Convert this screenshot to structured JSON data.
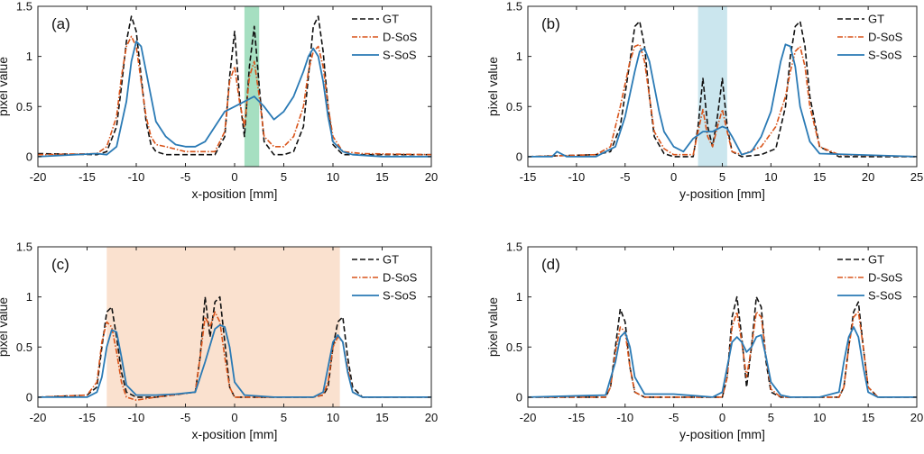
{
  "figure": {
    "legend_labels": [
      "GT",
      "D-SoS",
      "S-SoS"
    ],
    "colors": {
      "GT": "#111111",
      "D-SoS": "#d9541a",
      "S-SoS": "#2a7ab5"
    }
  },
  "chart_data": [
    {
      "type": "line",
      "panel_label": "(a)",
      "xlabel": "x-position [mm]",
      "ylabel": "pixel value",
      "xlim": [
        -20,
        20
      ],
      "ylim": [
        -0.1,
        1.5
      ],
      "xticks": [
        -20,
        -15,
        -10,
        -5,
        0,
        5,
        10,
        15,
        20
      ],
      "yticks": [
        0,
        0.5,
        1,
        1.5
      ],
      "legend": "top-right",
      "highlight": {
        "x": [
          1.0,
          2.5
        ],
        "color": "#5cc48e",
        "opacity": 0.55
      },
      "series": [
        {
          "name": "GT",
          "style": "dashed",
          "x": [
            -20,
            -14,
            -13,
            -12,
            -11.5,
            -11,
            -10.5,
            -10,
            -9.5,
            -9,
            -8.5,
            -8,
            -7,
            -5,
            -2,
            -1,
            -0.5,
            0,
            0.5,
            1,
            1.5,
            2,
            2.5,
            3,
            4,
            5,
            6,
            7,
            7.5,
            8,
            8.5,
            9,
            9.5,
            10,
            11,
            13,
            20
          ],
          "y": [
            0.03,
            0.02,
            0.05,
            0.3,
            0.7,
            1.15,
            1.4,
            1.25,
            0.8,
            0.35,
            0.12,
            0.05,
            0.02,
            0.02,
            0.02,
            0.2,
            0.8,
            1.25,
            0.6,
            0.2,
            0.9,
            1.3,
            0.7,
            0.15,
            0.02,
            0.02,
            0.05,
            0.3,
            0.8,
            1.3,
            1.4,
            1.05,
            0.5,
            0.12,
            0.02,
            0.02,
            0.02
          ]
        },
        {
          "name": "D-SoS",
          "style": "dashdot",
          "x": [
            -20,
            -14,
            -13,
            -12,
            -11.5,
            -11,
            -10.5,
            -10,
            -9.5,
            -9,
            -8.5,
            -8,
            -7,
            -5,
            -2,
            -1,
            -0.5,
            0,
            0.5,
            1,
            1.5,
            2,
            2.5,
            3,
            4,
            5,
            6,
            7,
            7.5,
            8,
            8.5,
            9,
            9.5,
            10,
            11,
            13,
            20
          ],
          "y": [
            0.02,
            0.03,
            0.1,
            0.4,
            0.8,
            1.1,
            1.2,
            1.1,
            0.75,
            0.4,
            0.2,
            0.12,
            0.1,
            0.05,
            0.05,
            0.25,
            0.75,
            0.9,
            0.55,
            0.3,
            0.8,
            0.95,
            0.6,
            0.2,
            0.1,
            0.1,
            0.2,
            0.5,
            0.85,
            1.05,
            1.1,
            0.9,
            0.5,
            0.2,
            0.05,
            0.03,
            0.02
          ]
        },
        {
          "name": "S-SoS",
          "style": "solid",
          "x": [
            -20,
            -14,
            -13,
            -12,
            -11,
            -10.5,
            -10,
            -9.5,
            -9,
            -8,
            -7,
            -6,
            -5,
            -4,
            -3,
            -2,
            -1,
            0,
            1,
            2,
            3,
            4,
            5,
            6,
            7,
            7.5,
            8,
            8.5,
            9,
            9.5,
            10,
            11,
            12,
            15,
            20
          ],
          "y": [
            0.0,
            0.03,
            0.02,
            0.1,
            0.55,
            0.95,
            1.15,
            1.1,
            0.85,
            0.35,
            0.2,
            0.12,
            0.1,
            0.1,
            0.15,
            0.3,
            0.45,
            0.5,
            0.55,
            0.6,
            0.5,
            0.37,
            0.45,
            0.6,
            0.85,
            1.0,
            1.08,
            1.0,
            0.75,
            0.4,
            0.15,
            0.05,
            0.02,
            0.0,
            0.0
          ]
        }
      ]
    },
    {
      "type": "line",
      "panel_label": "(b)",
      "xlabel": "y-position [mm]",
      "ylabel": "pixel value",
      "xlim": [
        -15,
        25
      ],
      "ylim": [
        -0.1,
        1.5
      ],
      "xticks": [
        -15,
        -10,
        -5,
        0,
        5,
        10,
        15,
        20,
        25
      ],
      "yticks": [
        0,
        0.5,
        1,
        1.5
      ],
      "legend": "top-right",
      "highlight": {
        "x": [
          2.5,
          5.5
        ],
        "color": "#a9d6e2",
        "opacity": 0.6
      },
      "series": [
        {
          "name": "GT",
          "style": "dashed",
          "x": [
            -15,
            -8,
            -6.5,
            -5.5,
            -4.5,
            -4,
            -3.5,
            -3,
            -2.5,
            -2,
            -1,
            0,
            2,
            2.5,
            3,
            3.5,
            4,
            4.5,
            5,
            5.5,
            6,
            7,
            9,
            10.5,
            11.5,
            12,
            12.5,
            13,
            13.5,
            14,
            15,
            17,
            25
          ],
          "y": [
            0.0,
            0.02,
            0.05,
            0.3,
            0.95,
            1.3,
            1.35,
            1.1,
            0.6,
            0.2,
            0.03,
            0.0,
            0.0,
            0.3,
            0.78,
            0.3,
            0.1,
            0.4,
            0.78,
            0.3,
            0.05,
            0.0,
            0.02,
            0.08,
            0.5,
            1.0,
            1.3,
            1.35,
            1.1,
            0.6,
            0.1,
            0.0,
            0.0
          ]
        },
        {
          "name": "D-SoS",
          "style": "dashdot",
          "x": [
            -15,
            -8,
            -6.5,
            -5.5,
            -4.5,
            -4,
            -3.5,
            -3,
            -2.5,
            -2,
            -1,
            0,
            2,
            2.5,
            3,
            3.5,
            4,
            4.5,
            5,
            5.5,
            6,
            7,
            9,
            10.5,
            11.5,
            12,
            12.5,
            13,
            13.5,
            14,
            15,
            17,
            25
          ],
          "y": [
            0.0,
            0.02,
            0.1,
            0.5,
            0.95,
            1.1,
            1.12,
            0.95,
            0.6,
            0.25,
            0.08,
            0.02,
            0.02,
            0.25,
            0.47,
            0.2,
            0.1,
            0.3,
            0.47,
            0.25,
            0.05,
            0.02,
            0.1,
            0.3,
            0.6,
            0.85,
            1.05,
            1.1,
            0.9,
            0.5,
            0.1,
            0.02,
            0.0
          ]
        },
        {
          "name": "S-SoS",
          "style": "solid",
          "x": [
            -15,
            -12.5,
            -12,
            -11,
            -8,
            -6,
            -5,
            -4,
            -3.5,
            -3,
            -2.5,
            -2,
            -1.5,
            -1,
            0,
            1,
            2,
            3,
            4,
            5,
            5.5,
            6,
            7,
            8,
            9,
            10,
            11,
            11.5,
            12,
            12.5,
            13,
            14,
            15,
            25
          ],
          "y": [
            0.0,
            0.0,
            0.05,
            0.0,
            0.0,
            0.1,
            0.4,
            0.85,
            1.05,
            1.08,
            0.95,
            0.7,
            0.45,
            0.25,
            0.1,
            0.05,
            0.18,
            0.25,
            0.25,
            0.3,
            0.28,
            0.2,
            0.02,
            0.05,
            0.2,
            0.45,
            0.95,
            1.12,
            1.1,
            0.9,
            0.5,
            0.15,
            0.03,
            0.0
          ]
        }
      ]
    },
    {
      "type": "line",
      "panel_label": "(c)",
      "xlabel": "x-position [mm]",
      "ylabel": "pixel value",
      "xlim": [
        -20,
        20
      ],
      "ylim": [
        -0.1,
        1.5
      ],
      "xticks": [
        -20,
        -15,
        -10,
        -5,
        0,
        5,
        10,
        15,
        20
      ],
      "yticks": [
        0,
        0.5,
        1,
        1.5
      ],
      "legend": "top-right",
      "highlight": {
        "x": [
          -13.0,
          10.7
        ],
        "color": "#f5c9a8",
        "opacity": 0.55
      },
      "series": [
        {
          "name": "GT",
          "style": "dashed",
          "x": [
            -20,
            -15,
            -14,
            -13.5,
            -13,
            -12.5,
            -12,
            -11.5,
            -11,
            -10,
            -8,
            -4,
            -3.5,
            -3,
            -2.5,
            -2,
            -1.5,
            -1,
            -0.5,
            0,
            1,
            8,
            9,
            9.5,
            10,
            10.5,
            11,
            11.5,
            12,
            13,
            20
          ],
          "y": [
            0.0,
            0.02,
            0.1,
            0.5,
            0.85,
            0.9,
            0.6,
            0.25,
            0.05,
            0.0,
            0.0,
            0.05,
            0.4,
            1.0,
            0.6,
            0.95,
            1.0,
            0.55,
            0.1,
            0.0,
            0.0,
            0.0,
            0.02,
            0.1,
            0.5,
            0.75,
            0.8,
            0.4,
            0.1,
            0.0,
            0.0
          ]
        },
        {
          "name": "D-SoS",
          "style": "dashdot",
          "x": [
            -20,
            -15,
            -14,
            -13.5,
            -13,
            -12.5,
            -12,
            -11.5,
            -11,
            -10,
            -8,
            -4,
            -3.5,
            -3,
            -2.5,
            -2,
            -1.5,
            -1,
            -0.5,
            0,
            1,
            8,
            9,
            9.5,
            10,
            10.5,
            11,
            11.5,
            12,
            13,
            20
          ],
          "y": [
            0.0,
            0.02,
            0.15,
            0.55,
            0.75,
            0.7,
            0.45,
            0.15,
            0.0,
            -0.03,
            0.0,
            0.05,
            0.4,
            0.8,
            0.7,
            0.85,
            0.75,
            0.4,
            0.1,
            0.0,
            0.0,
            0.0,
            0.02,
            0.15,
            0.5,
            0.6,
            0.55,
            0.3,
            0.05,
            0.0,
            0.0
          ]
        },
        {
          "name": "S-SoS",
          "style": "solid",
          "x": [
            -20,
            -15,
            -14,
            -13.5,
            -13,
            -12.5,
            -12,
            -11.5,
            -11,
            -10,
            -8,
            -6,
            -4,
            -3,
            -2,
            -1.5,
            -1,
            -0.5,
            0,
            1,
            4,
            8,
            9,
            9.5,
            10,
            10.5,
            11,
            11.5,
            12,
            13,
            20
          ],
          "y": [
            0.0,
            0.0,
            0.05,
            0.2,
            0.5,
            0.67,
            0.65,
            0.4,
            0.12,
            0.02,
            0.02,
            0.03,
            0.05,
            0.35,
            0.68,
            0.72,
            0.7,
            0.5,
            0.15,
            0.02,
            0.0,
            0.0,
            0.05,
            0.3,
            0.55,
            0.62,
            0.55,
            0.25,
            0.05,
            0.0,
            0.0
          ]
        }
      ]
    },
    {
      "type": "line",
      "panel_label": "(d)",
      "xlabel": "y-position [mm]",
      "ylabel": "pixel value",
      "xlim": [
        -20,
        20
      ],
      "ylim": [
        -0.1,
        1.5
      ],
      "xticks": [
        -20,
        -15,
        -10,
        -5,
        0,
        5,
        10,
        15,
        20
      ],
      "yticks": [
        0,
        0.5,
        1,
        1.5
      ],
      "legend": "top-right",
      "series": [
        {
          "name": "GT",
          "style": "dashed",
          "x": [
            -20,
            -12,
            -11.5,
            -11,
            -10.5,
            -10,
            -9.5,
            -9,
            -8,
            0,
            0.5,
            1,
            1.5,
            2,
            2.5,
            3,
            3.5,
            4,
            4.5,
            5,
            6,
            12,
            12.5,
            13,
            13.5,
            14,
            14.5,
            15,
            16,
            20
          ],
          "y": [
            0.0,
            0.0,
            0.1,
            0.5,
            0.88,
            0.75,
            0.3,
            0.05,
            0.0,
            0.0,
            0.2,
            0.8,
            1.0,
            0.6,
            0.1,
            0.5,
            1.0,
            0.9,
            0.35,
            0.05,
            0.0,
            0.0,
            0.1,
            0.5,
            0.85,
            0.95,
            0.5,
            0.1,
            0.0,
            0.0
          ]
        },
        {
          "name": "D-SoS",
          "style": "dashdot",
          "x": [
            -20,
            -12,
            -11.5,
            -11,
            -10.5,
            -10,
            -9.5,
            -9,
            -8,
            0,
            0.5,
            1,
            1.5,
            2,
            2.5,
            3,
            3.5,
            4,
            4.5,
            5,
            6,
            12,
            12.5,
            13,
            13.5,
            14,
            14.5,
            15,
            16,
            20
          ],
          "y": [
            0.0,
            0.0,
            0.1,
            0.45,
            0.7,
            0.65,
            0.3,
            0.05,
            0.0,
            0.0,
            0.2,
            0.7,
            0.85,
            0.55,
            0.2,
            0.5,
            0.85,
            0.8,
            0.4,
            0.08,
            0.0,
            0.0,
            0.1,
            0.5,
            0.8,
            0.85,
            0.5,
            0.1,
            0.0,
            0.0
          ]
        },
        {
          "name": "S-SoS",
          "style": "solid",
          "x": [
            -20,
            -12,
            -11,
            -10.5,
            -10,
            -9.5,
            -9,
            -8,
            -5,
            -1,
            0,
            0.5,
            1,
            1.5,
            2,
            2.5,
            3,
            3.5,
            4,
            4.5,
            5,
            6,
            7,
            10,
            12,
            12.5,
            13,
            13.5,
            14,
            14.5,
            15,
            16,
            20
          ],
          "y": [
            0.0,
            0.02,
            0.35,
            0.6,
            0.65,
            0.5,
            0.2,
            0.03,
            0.03,
            0.0,
            0.05,
            0.3,
            0.55,
            0.6,
            0.55,
            0.45,
            0.5,
            0.6,
            0.62,
            0.4,
            0.15,
            0.02,
            0.0,
            0.0,
            0.05,
            0.35,
            0.6,
            0.7,
            0.6,
            0.3,
            0.05,
            0.0,
            0.0
          ]
        }
      ]
    }
  ]
}
